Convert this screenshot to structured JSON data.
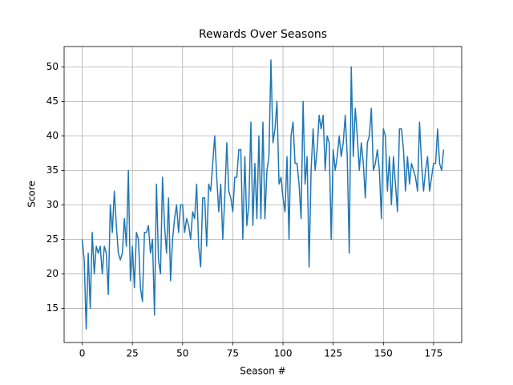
{
  "chart_data": {
    "type": "line",
    "title": "Rewards Over Seasons",
    "x_label": "Season #",
    "y_label": "Score",
    "x": [
      0,
      1,
      2,
      3,
      4,
      5,
      6,
      7,
      8,
      9,
      10,
      11,
      12,
      13,
      14,
      15,
      16,
      17,
      18,
      19,
      20,
      21,
      22,
      23,
      24,
      25,
      26,
      27,
      28,
      29,
      30,
      31,
      32,
      33,
      34,
      35,
      36,
      37,
      38,
      39,
      40,
      41,
      42,
      43,
      44,
      45,
      46,
      47,
      48,
      49,
      50,
      51,
      52,
      53,
      54,
      55,
      56,
      57,
      58,
      59,
      60,
      61,
      62,
      63,
      64,
      65,
      66,
      67,
      68,
      69,
      70,
      71,
      72,
      73,
      74,
      75,
      76,
      77,
      78,
      79,
      80,
      81,
      82,
      83,
      84,
      85,
      86,
      87,
      88,
      89,
      90,
      91,
      92,
      93,
      94,
      95,
      96,
      97,
      98,
      99,
      100,
      101,
      102,
      103,
      104,
      105,
      106,
      107,
      108,
      109,
      110,
      111,
      112,
      113,
      114,
      115,
      116,
      117,
      118,
      119,
      120,
      121,
      122,
      123,
      124,
      125,
      126,
      127,
      128,
      129,
      130,
      131,
      132,
      133,
      134,
      135,
      136,
      137,
      138,
      139,
      140,
      141,
      142,
      143,
      144,
      145,
      146,
      147,
      148,
      149,
      150,
      151,
      152,
      153,
      154,
      155,
      156,
      157,
      158,
      159,
      160,
      161,
      162,
      163,
      164,
      165,
      166,
      167,
      168,
      169,
      170,
      171,
      172,
      173,
      174,
      175,
      176,
      177,
      178,
      179,
      180
    ],
    "series": [
      {
        "name": "Score",
        "color": "#1f77b4",
        "values": [
          25,
          22,
          12,
          23,
          15,
          26,
          20,
          24,
          23,
          24,
          20,
          24,
          23,
          17,
          30,
          26,
          32,
          27,
          23,
          22,
          23,
          28,
          24,
          35,
          19,
          24,
          18,
          26,
          25,
          18,
          16,
          26,
          26,
          27,
          23,
          25,
          14,
          33,
          22,
          20,
          34,
          27,
          23,
          31,
          19,
          25,
          28,
          30,
          26,
          30,
          30,
          26,
          28,
          27,
          25,
          29,
          28,
          33,
          24,
          21,
          31,
          31,
          24,
          33,
          32,
          36,
          40,
          34,
          29,
          33,
          25,
          31,
          39,
          32,
          31,
          29,
          34,
          34,
          38,
          38,
          25,
          37,
          27,
          30,
          42,
          27,
          36,
          28,
          40,
          28,
          42,
          28,
          35,
          37,
          51,
          39,
          41,
          45,
          33,
          34,
          31,
          29,
          37,
          25,
          40,
          42,
          36,
          36,
          33,
          28,
          45,
          33,
          37,
          21,
          35,
          41,
          35,
          38,
          43,
          41,
          43,
          35,
          40,
          39,
          25,
          38,
          35,
          37,
          40,
          37,
          39,
          43,
          37,
          23,
          50,
          37,
          44,
          40,
          35,
          39,
          36,
          31,
          39,
          40,
          44,
          35,
          36,
          38,
          35,
          28,
          41,
          40,
          32,
          37,
          30,
          37,
          33,
          29,
          41,
          41,
          38,
          32,
          37,
          33,
          36,
          35,
          34,
          32,
          42,
          36,
          32,
          35,
          37,
          32,
          34,
          36,
          36,
          41,
          36,
          35,
          38
        ]
      }
    ],
    "xlim": [
      -9,
      189
    ],
    "ylim": [
      10.05,
      52.95
    ],
    "xticks": [
      0,
      25,
      50,
      75,
      100,
      125,
      150,
      175
    ],
    "yticks": [
      15,
      20,
      25,
      30,
      35,
      40,
      45,
      50
    ],
    "grid": true
  }
}
